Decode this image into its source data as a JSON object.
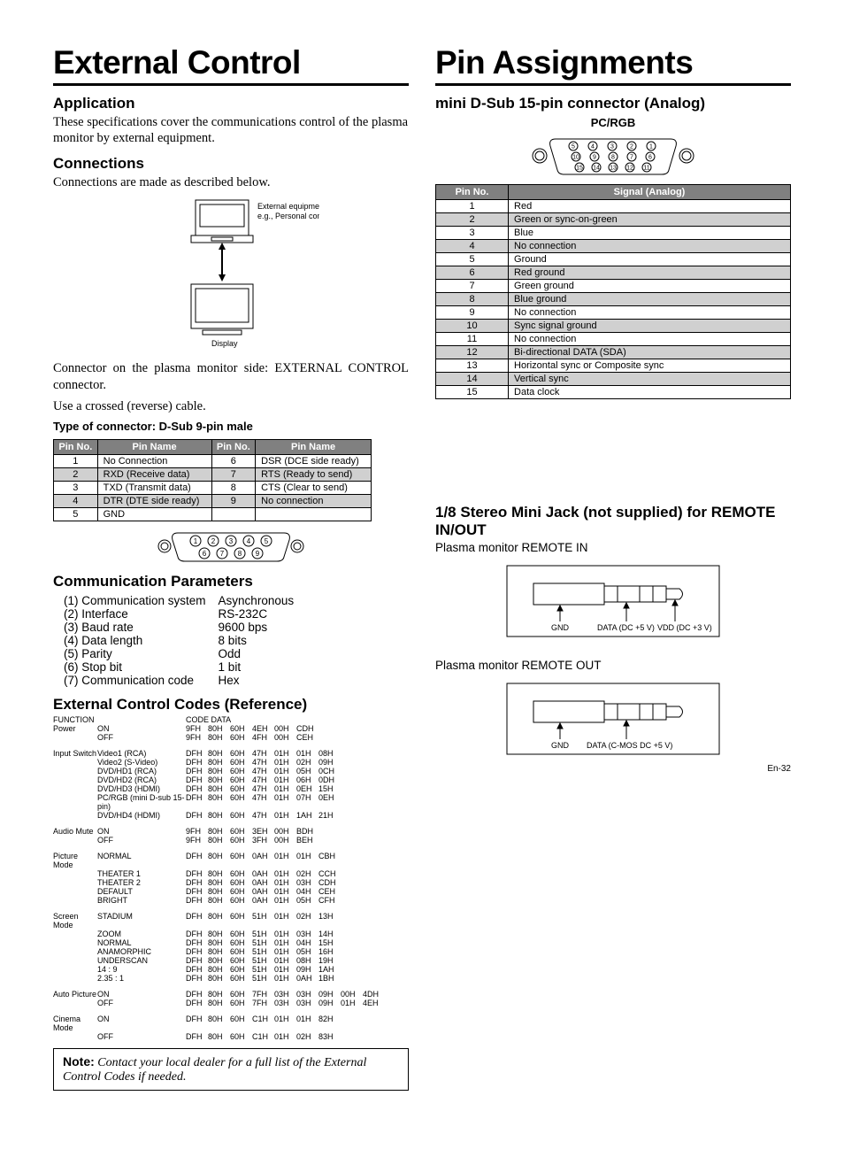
{
  "left": {
    "title": "External Control",
    "h_app": "Application",
    "p_app": "These specifications cover the communications control of the plasma monitor by external equipment.",
    "h_conn": "Connections",
    "p_conn": "Connections are made as described below.",
    "fig_top": "External equipment\ne.g., Personal computer",
    "fig_bottom": "Display",
    "p_connector": "Connector on the plasma monitor side: EXTERNAL CONTROL connector.",
    "p_cable": "Use a crossed (reverse) cable.",
    "h_type": "Type of connector: D-Sub 9-pin male",
    "pin9_headers": [
      "Pin No.",
      "Pin Name",
      "Pin No.",
      "Pin Name"
    ],
    "pin9_rows": [
      [
        "1",
        "No Connection",
        "6",
        "DSR (DCE side ready)"
      ],
      [
        "2",
        "RXD (Receive data)",
        "7",
        "RTS (Ready to send)"
      ],
      [
        "3",
        "TXD (Transmit data)",
        "8",
        "CTS (Clear to send)"
      ],
      [
        "4",
        "DTR (DTE side ready)",
        "9",
        "No connection"
      ],
      [
        "5",
        "GND",
        "",
        ""
      ]
    ],
    "h_comm": "Communication Parameters",
    "params": [
      [
        "(1) Communication system",
        "Asynchronous"
      ],
      [
        "(2) Interface",
        "RS-232C"
      ],
      [
        "(3) Baud rate",
        "9600 bps"
      ],
      [
        "(4) Data length",
        "8 bits"
      ],
      [
        "(5) Parity",
        "Odd"
      ],
      [
        "(6) Stop bit",
        "1 bit"
      ],
      [
        "(7) Communication code",
        "Hex"
      ]
    ],
    "h_codes": "External Control Codes (Reference)",
    "codes_hdr_fn": "FUNCTION",
    "codes_hdr_cd": "CODE DATA",
    "code_groups": [
      {
        "fn": "Power",
        "rows": [
          {
            "sub": "ON",
            "d": [
              "9FH",
              "80H",
              "60H",
              "4EH",
              "00H",
              "CDH"
            ]
          },
          {
            "sub": "OFF",
            "d": [
              "9FH",
              "80H",
              "60H",
              "4FH",
              "00H",
              "CEH"
            ]
          }
        ]
      },
      {
        "fn": "Input Switch",
        "rows": [
          {
            "sub": "Video1 (RCA)",
            "d": [
              "DFH",
              "80H",
              "60H",
              "47H",
              "01H",
              "01H",
              "08H"
            ]
          },
          {
            "sub": "Video2 (S-Video)",
            "d": [
              "DFH",
              "80H",
              "60H",
              "47H",
              "01H",
              "02H",
              "09H"
            ]
          },
          {
            "sub": "DVD/HD1 (RCA)",
            "d": [
              "DFH",
              "80H",
              "60H",
              "47H",
              "01H",
              "05H",
              "0CH"
            ]
          },
          {
            "sub": "DVD/HD2 (RCA)",
            "d": [
              "DFH",
              "80H",
              "60H",
              "47H",
              "01H",
              "06H",
              "0DH"
            ]
          },
          {
            "sub": "DVD/HD3 (HDMI)",
            "d": [
              "DFH",
              "80H",
              "60H",
              "47H",
              "01H",
              "0EH",
              "15H"
            ]
          },
          {
            "sub": "PC/RGB (mini D-sub 15-pin)",
            "d": [
              "DFH",
              "80H",
              "60H",
              "47H",
              "01H",
              "07H",
              "0EH"
            ]
          },
          {
            "sub": "DVD/HD4 (HDMI)",
            "d": [
              "DFH",
              "80H",
              "60H",
              "47H",
              "01H",
              "1AH",
              "21H"
            ]
          }
        ]
      },
      {
        "fn": "Audio Mute",
        "rows": [
          {
            "sub": "ON",
            "d": [
              "9FH",
              "80H",
              "60H",
              "3EH",
              "00H",
              "BDH"
            ]
          },
          {
            "sub": "OFF",
            "d": [
              "9FH",
              "80H",
              "60H",
              "3FH",
              "00H",
              "BEH"
            ]
          }
        ]
      },
      {
        "fn": "Picture Mode",
        "rows": [
          {
            "sub": "NORMAL",
            "d": [
              "DFH",
              "80H",
              "60H",
              "0AH",
              "01H",
              "01H",
              "CBH"
            ]
          },
          {
            "sub": "THEATER 1",
            "d": [
              "DFH",
              "80H",
              "60H",
              "0AH",
              "01H",
              "02H",
              "CCH"
            ]
          },
          {
            "sub": "THEATER 2",
            "d": [
              "DFH",
              "80H",
              "60H",
              "0AH",
              "01H",
              "03H",
              "CDH"
            ]
          },
          {
            "sub": "DEFAULT",
            "d": [
              "DFH",
              "80H",
              "60H",
              "0AH",
              "01H",
              "04H",
              "CEH"
            ]
          },
          {
            "sub": "BRIGHT",
            "d": [
              "DFH",
              "80H",
              "60H",
              "0AH",
              "01H",
              "05H",
              "CFH"
            ]
          }
        ]
      },
      {
        "fn": "Screen Mode",
        "rows": [
          {
            "sub": "STADIUM",
            "d": [
              "DFH",
              "80H",
              "60H",
              "51H",
              "01H",
              "02H",
              "13H"
            ]
          },
          {
            "sub": "ZOOM",
            "d": [
              "DFH",
              "80H",
              "60H",
              "51H",
              "01H",
              "03H",
              "14H"
            ]
          },
          {
            "sub": "NORMAL",
            "d": [
              "DFH",
              "80H",
              "60H",
              "51H",
              "01H",
              "04H",
              "15H"
            ]
          },
          {
            "sub": "ANAMORPHIC",
            "d": [
              "DFH",
              "80H",
              "60H",
              "51H",
              "01H",
              "05H",
              "16H"
            ]
          },
          {
            "sub": "UNDERSCAN",
            "d": [
              "DFH",
              "80H",
              "60H",
              "51H",
              "01H",
              "08H",
              "19H"
            ]
          },
          {
            "sub": "14 : 9",
            "d": [
              "DFH",
              "80H",
              "60H",
              "51H",
              "01H",
              "09H",
              "1AH"
            ]
          },
          {
            "sub": "2.35 : 1",
            "d": [
              "DFH",
              "80H",
              "60H",
              "51H",
              "01H",
              "0AH",
              "1BH"
            ]
          }
        ]
      },
      {
        "fn": "Auto Picture",
        "rows": [
          {
            "sub": "ON",
            "d": [
              "DFH",
              "80H",
              "60H",
              "7FH",
              "03H",
              "03H",
              "09H",
              "00H",
              "4DH"
            ]
          },
          {
            "sub": "OFF",
            "d": [
              "DFH",
              "80H",
              "60H",
              "7FH",
              "03H",
              "03H",
              "09H",
              "01H",
              "4EH"
            ]
          }
        ]
      },
      {
        "fn": "Cinema Mode",
        "rows": [
          {
            "sub": "ON",
            "d": [
              "DFH",
              "80H",
              "60H",
              "C1H",
              "01H",
              "01H",
              "82H"
            ]
          },
          {
            "sub": "OFF",
            "d": [
              "DFH",
              "80H",
              "60H",
              "C1H",
              "01H",
              "02H",
              "83H"
            ]
          }
        ]
      }
    ],
    "note_label": "Note:",
    "note_text": " Contact your local dealer for a full list of the External Control Codes if needed."
  },
  "right": {
    "title": "Pin Assignments",
    "h_dsub": "mini D-Sub 15-pin connector (Analog)",
    "pcrgb": "PC/RGB",
    "pin15_headers": [
      "Pin No.",
      "Signal (Analog)"
    ],
    "pin15_rows": [
      [
        "1",
        "Red"
      ],
      [
        "2",
        "Green or sync-on-green"
      ],
      [
        "3",
        "Blue"
      ],
      [
        "4",
        "No connection"
      ],
      [
        "5",
        "Ground"
      ],
      [
        "6",
        "Red ground"
      ],
      [
        "7",
        "Green ground"
      ],
      [
        "8",
        "Blue ground"
      ],
      [
        "9",
        "No connection"
      ],
      [
        "10",
        "Sync signal ground"
      ],
      [
        "11",
        "No connection"
      ],
      [
        "12",
        "Bi-directional DATA (SDA)"
      ],
      [
        "13",
        "Horizontal sync or Composite sync"
      ],
      [
        "14",
        "Vertical sync"
      ],
      [
        "15",
        "Data clock"
      ]
    ],
    "h_jack": "1/8 Stereo Mini Jack (not supplied) for REMOTE IN/OUT",
    "p_remin": "Plasma monitor REMOTE IN",
    "jack_in_labels": [
      "GND",
      "DATA (DC +5 V)",
      "VDD (DC +3 V)"
    ],
    "p_remout": "Plasma monitor REMOTE OUT",
    "jack_out_labels": [
      "GND",
      "DATA (C-MOS DC +5 V)"
    ],
    "page": "En-32"
  }
}
